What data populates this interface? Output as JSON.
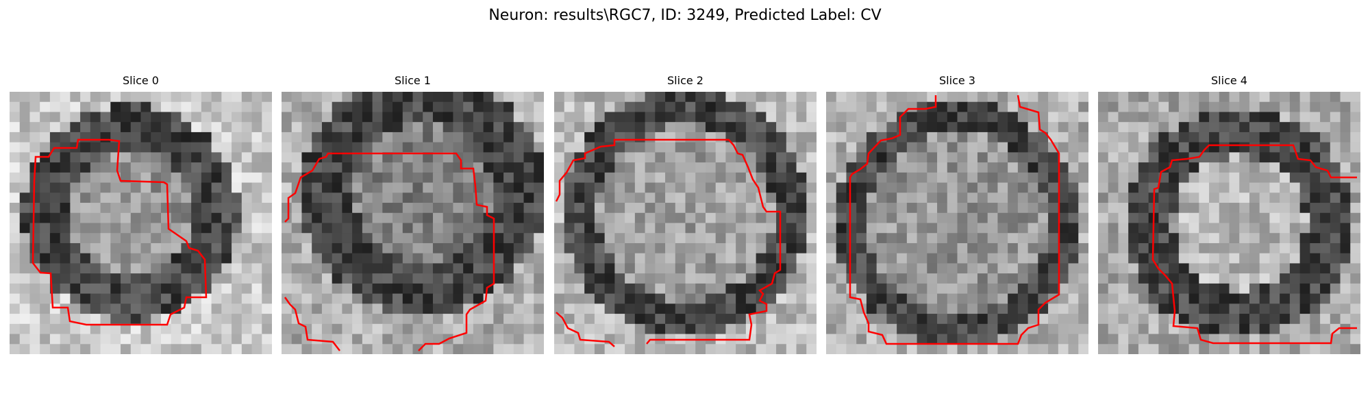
{
  "figure": {
    "title": "Neuron: results\\RGC7, ID: 3249, Predicted Label: CV"
  },
  "colors": {
    "contour": "#ff0000",
    "background": "#ffffff"
  },
  "panels": [
    {
      "title": "Slice 0"
    },
    {
      "title": "Slice 1"
    },
    {
      "title": "Slice 2"
    },
    {
      "title": "Slice 3"
    },
    {
      "title": "Slice 4"
    }
  ]
}
